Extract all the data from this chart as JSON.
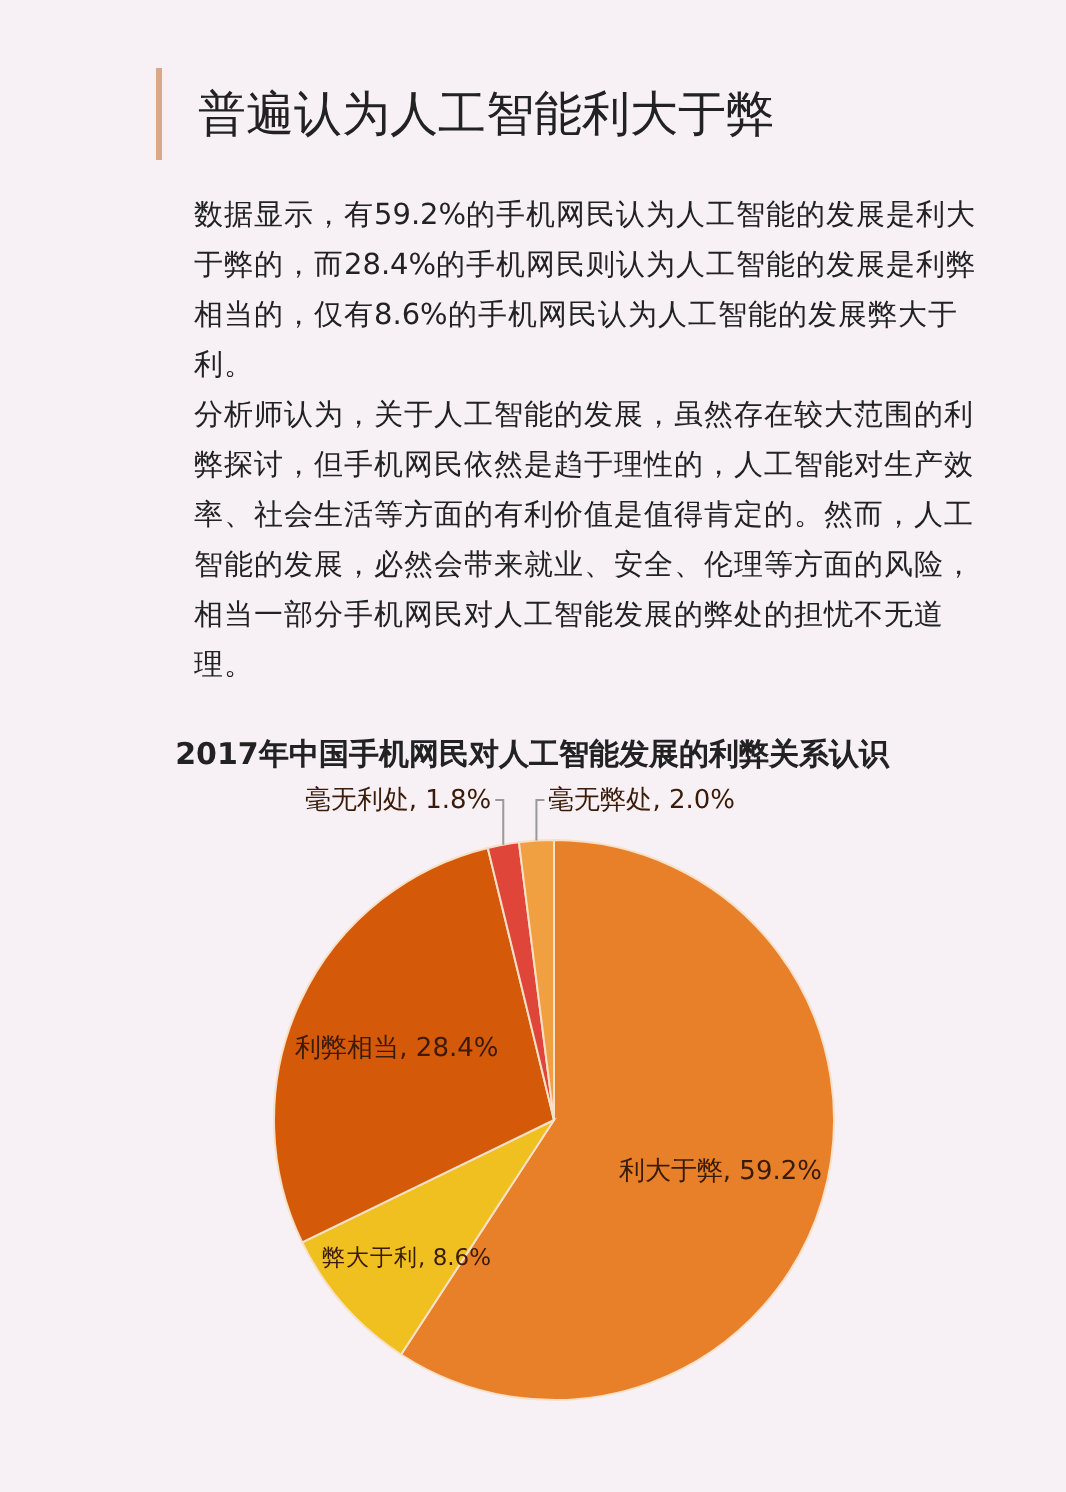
{
  "chart_data": {
    "type": "pie",
    "title": "2017年中国手机网民对人工智能发展的利弊关系认识",
    "categories": [
      "利大于弊",
      "弊大于利",
      "利弊相当",
      "毫无利处",
      "毫无弊处"
    ],
    "values": [
      59.2,
      8.6,
      28.4,
      1.8,
      2.0
    ],
    "value_labels": [
      "59.2%",
      "8.6%",
      "28.4%",
      "1.8%",
      "2.0%"
    ],
    "colors": [
      "#e8802a",
      "#f0c020",
      "#d45a0a",
      "#e0453a",
      "#f0a040"
    ],
    "annotations": [
      "普遍认为人工智能利大于弊",
      "数据显示，有59.2%的手机网民认为人工智能的发展是利大于弊的，而28.4%的手机网民则认为人工智能的发展是利弊相当的，仅有8.6%的手机网民认为人工智能的发展弊大于利。",
      "分析师认为，关于人工智能的发展，虽然存在较大范围的利弊探讨，但手机网民依然是趋于理性的，人工智能对生产效率、社会生活等方面的有利价值是值得肯定的。然而，人工智能的发展，必然会带来就业、安全、伦理等方面的风险，相当一部分手机网民对人工智能发展的弊处的担忧不无道理。"
    ]
  }
}
